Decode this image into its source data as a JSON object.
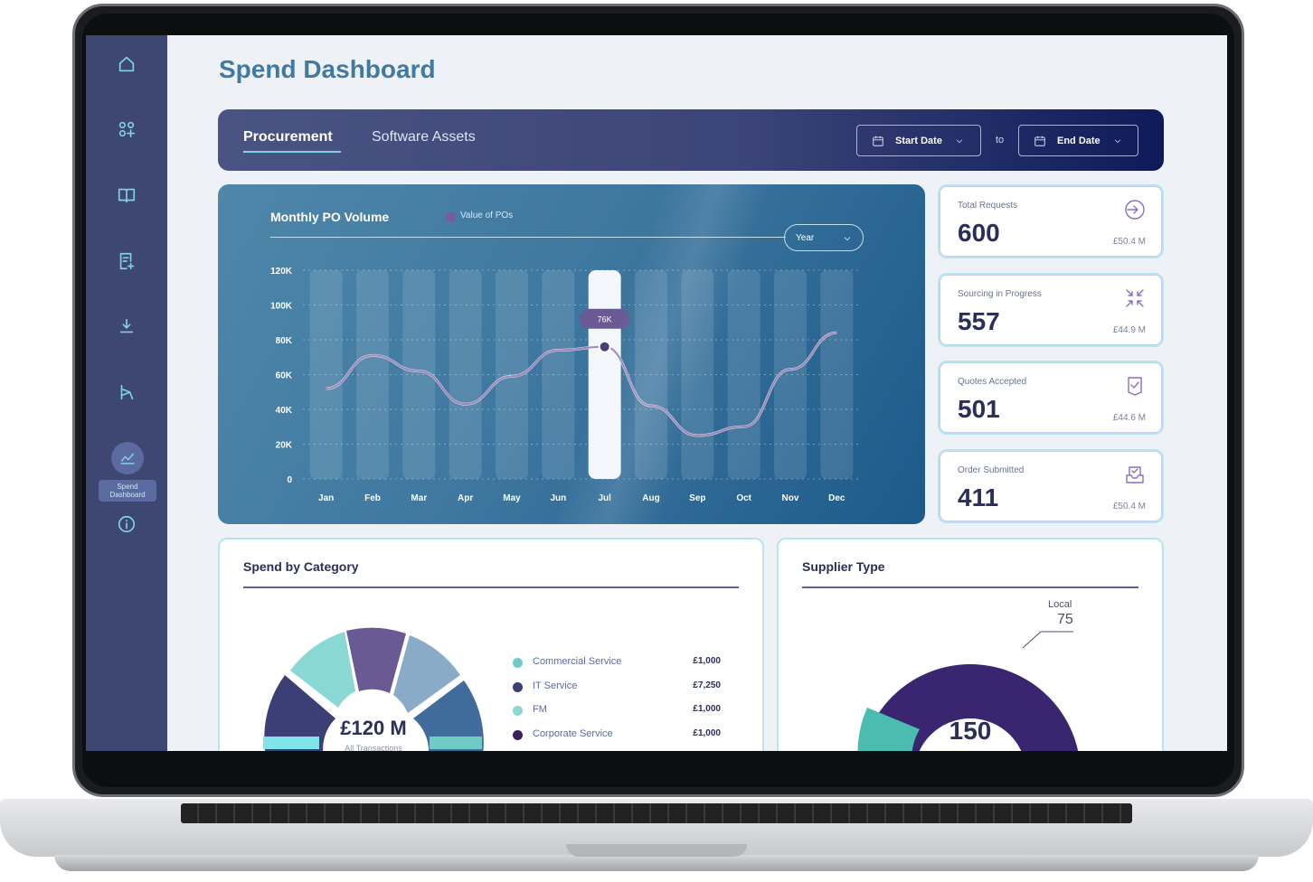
{
  "sidebar": {
    "items": [
      {
        "name": "home"
      },
      {
        "name": "apps"
      },
      {
        "name": "catalog"
      },
      {
        "name": "requests"
      },
      {
        "name": "downloads"
      },
      {
        "name": "workflow"
      },
      {
        "name": "spend-dashboard",
        "label": "Spend Dashboard"
      },
      {
        "name": "info"
      }
    ],
    "active_label": "Spend Dashboard"
  },
  "page": {
    "title": "Spend Dashboard"
  },
  "header": {
    "tabs": [
      "Procurement",
      "Software Assets"
    ],
    "active_tab": "Procurement",
    "start_date": "Start Date",
    "to_label": "to",
    "end_date": "End Date"
  },
  "monthly_chart": {
    "title": "Monthly PO Volume",
    "legend": "Value of POs",
    "period": "Year",
    "highlight_label": "76K",
    "accent": "#7a5aa0"
  },
  "chart_data": {
    "type": "line",
    "title": "Monthly PO Volume",
    "categories": [
      "Jan",
      "Feb",
      "Mar",
      "Apr",
      "May",
      "Jun",
      "Jul",
      "Aug",
      "Sep",
      "Oct",
      "Nov",
      "Dec"
    ],
    "series": [
      {
        "name": "Value of POs",
        "values": [
          52,
          71,
          62,
          43,
          59,
          74,
          76,
          42,
          25,
          30,
          63,
          84
        ]
      }
    ],
    "y_ticks": [
      "120K",
      "100K",
      "80K",
      "60K",
      "40K",
      "20K",
      "0"
    ],
    "ylim": [
      0,
      120
    ],
    "highlight": {
      "category": "Jul",
      "label": "76K"
    },
    "grid": true
  },
  "stats": [
    {
      "label": "Total Requests",
      "value": "600",
      "amount": "£50.4 M",
      "icon": "arrow-in-icon"
    },
    {
      "label": "Sourcing in Progress",
      "value": "557",
      "amount": "£44.9 M",
      "icon": "compress-icon"
    },
    {
      "label": "Quotes Accepted",
      "value": "501",
      "amount": "£44.6 M",
      "icon": "clipboard-check-icon"
    },
    {
      "label": "Order Submitted",
      "value": "411",
      "amount": "£50.4 M",
      "icon": "inbox-check-icon"
    }
  ],
  "spend_by_category": {
    "title": "Spend by Category",
    "total": "£120 M",
    "total_label": "All Transactions",
    "categories": [
      {
        "name": "Commercial Service",
        "value": "£1,000",
        "color": "#6fcbc6"
      },
      {
        "name": "IT Service",
        "value": "£7,250",
        "color": "#3b3f75"
      },
      {
        "name": "FM",
        "value": "£1,000",
        "color": "#8ad8d4"
      },
      {
        "name": "Corporate Service",
        "value": "£1,000",
        "color": "#3a1f5c"
      }
    ]
  },
  "supplier_type": {
    "title": "Supplier Type",
    "total": "150",
    "callout_label": "Local",
    "callout_value": "75"
  }
}
